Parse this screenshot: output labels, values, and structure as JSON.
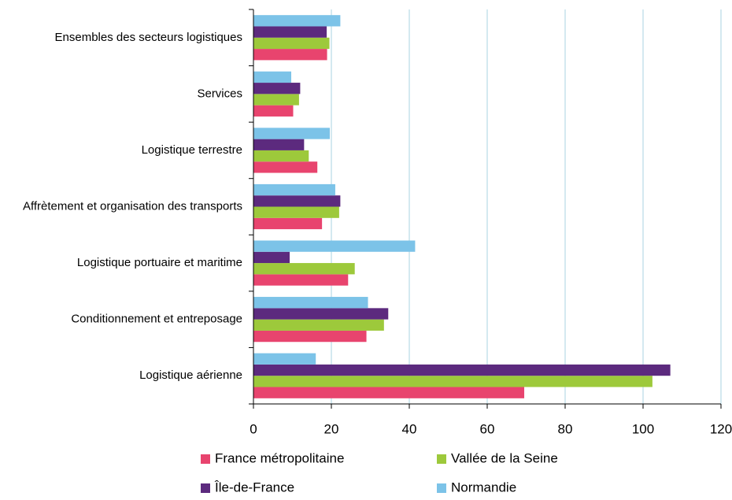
{
  "chart_data": {
    "type": "barh",
    "categories": [
      "Ensembles des secteurs logistiques",
      "Services",
      "Logistique terrestre",
      "Affrètement et organisation des transports",
      "Logistique portuaire et maritime",
      "Conditionnement et entreposage",
      "Logistique aérienne"
    ],
    "series": [
      {
        "name": "France métropolitaine",
        "color": "#e8446e",
        "values": [
          18.9,
          10.2,
          16.4,
          17.6,
          24.3,
          29,
          69.5
        ]
      },
      {
        "name": "Vallée de la Seine",
        "color": "#9dc93b",
        "values": [
          19.5,
          11.7,
          14.2,
          22,
          26,
          33.5,
          102.4
        ]
      },
      {
        "name": "Île-de-France",
        "color": "#5c2a7e",
        "values": [
          18.8,
          12,
          13,
          22.3,
          9.3,
          34.6,
          107
        ]
      },
      {
        "name": "Normandie",
        "color": "#7cc3e8",
        "values": [
          22.3,
          9.7,
          19.6,
          21,
          41.5,
          29.4,
          16
        ]
      }
    ],
    "xlim": [
      0,
      120
    ],
    "xticks": [
      0,
      20,
      40,
      60,
      80,
      100,
      120
    ],
    "grid": true
  }
}
